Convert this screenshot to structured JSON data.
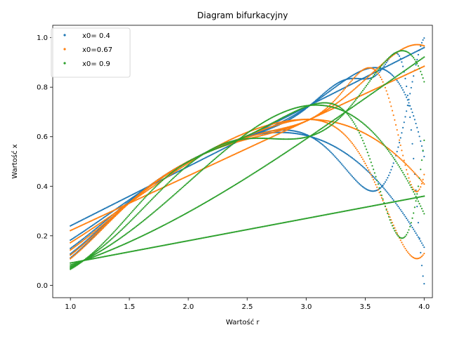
{
  "chart_data": {
    "type": "scatter",
    "title": "Diagram bifurkacyjny",
    "xlabel": "Wartość r",
    "ylabel": "Wartość x",
    "xlim": [
      0.85,
      4.07
    ],
    "ylim": [
      -0.05,
      1.05
    ],
    "xticks": [
      1.0,
      1.5,
      2.0,
      2.5,
      3.0,
      3.5,
      4.0
    ],
    "xtick_labels": [
      "1.0",
      "1.5",
      "2.0",
      "2.5",
      "3.0",
      "3.5",
      "4.0"
    ],
    "yticks": [
      0.0,
      0.2,
      0.4,
      0.6,
      0.8,
      1.0
    ],
    "ytick_labels": [
      "0.0",
      "0.2",
      "0.4",
      "0.6",
      "0.8",
      "1.0"
    ],
    "grid": false,
    "legend_position": "top-left",
    "r_range": [
      1.0,
      4.0
    ],
    "series": [
      {
        "name": "x0= 0.4",
        "color": "#1f77b4",
        "x0": 0.4
      },
      {
        "name": "x0=0.67",
        "color": "#ff7f0e",
        "x0": 0.67
      },
      {
        "name": "x0= 0.9",
        "color": "#2ca02c",
        "x0": 0.9
      }
    ]
  }
}
